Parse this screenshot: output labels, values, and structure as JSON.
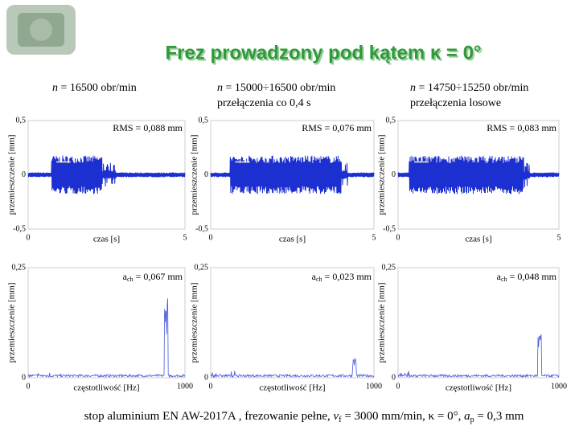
{
  "title": "Frez prowadzony pod kątem κ = 0°",
  "columns": [
    {
      "header": [
        [
          "n",
          " = 16500 obr/min"
        ]
      ],
      "time": {
        "ylabel": "przemieszczenie [mm]",
        "yticks": [
          "0,5",
          "0",
          "-0,5"
        ],
        "xticks": [
          "0",
          "5"
        ],
        "xlabel": "czas [s]",
        "annotation": "RMS = 0,088 mm"
      },
      "freq": {
        "ylabel": "przemieszczenie [mm]",
        "yticks": [
          "0,25",
          "0"
        ],
        "xticks": [
          "0",
          "1000"
        ],
        "xlabel": "częstotliwość [Hz]",
        "annotation": {
          "base": "a",
          "sub": "ch",
          "rest": " = 0,067 mm"
        }
      }
    },
    {
      "header": [
        [
          "n",
          " = 15000÷16500 obr/min"
        ],
        [
          "",
          "przełączenia co 0,4 s"
        ]
      ],
      "time": {
        "ylabel": "przemieszczenie [mm]",
        "yticks": [
          "0,5",
          "0",
          "-0,5"
        ],
        "xticks": [
          "0",
          "5"
        ],
        "xlabel": "czas [s]",
        "annotation": "RMS = 0,076 mm"
      },
      "freq": {
        "ylabel": "przemieszczenie [mm]",
        "yticks": [
          "0,25",
          "0"
        ],
        "xticks": [
          "0",
          "1000"
        ],
        "xlabel": "częstotliwość [Hz]",
        "annotation": {
          "base": "a",
          "sub": "ch",
          "rest": " = 0,023 mm"
        }
      }
    },
    {
      "header": [
        [
          "n",
          " = 14750÷15250 obr/min"
        ],
        [
          "",
          "przełączenia losowe"
        ]
      ],
      "time": {
        "ylabel": "przemieszczenie [mm]",
        "yticks": [
          "0,5",
          "0",
          "-0,5"
        ],
        "xticks": [
          "0",
          "5"
        ],
        "xlabel": "czas [s]",
        "annotation": "RMS = 0,083 mm"
      },
      "freq": {
        "ylabel": "przemieszczenie [mm]",
        "yticks": [
          "0,25",
          "0"
        ],
        "xticks": [
          "0",
          "1000"
        ],
        "xlabel": "częstotliwość [Hz]",
        "annotation": {
          "base": "a",
          "sub": "ch",
          "rest": " = 0,048 mm"
        }
      }
    }
  ],
  "footer": [
    "stop aluminium EN AW-2017A , frezowanie pełne, ",
    "v",
    "f",
    " = 3000 mm/min, κ = 0°, ",
    "a",
    "p",
    " = 0,3 mm"
  ]
}
